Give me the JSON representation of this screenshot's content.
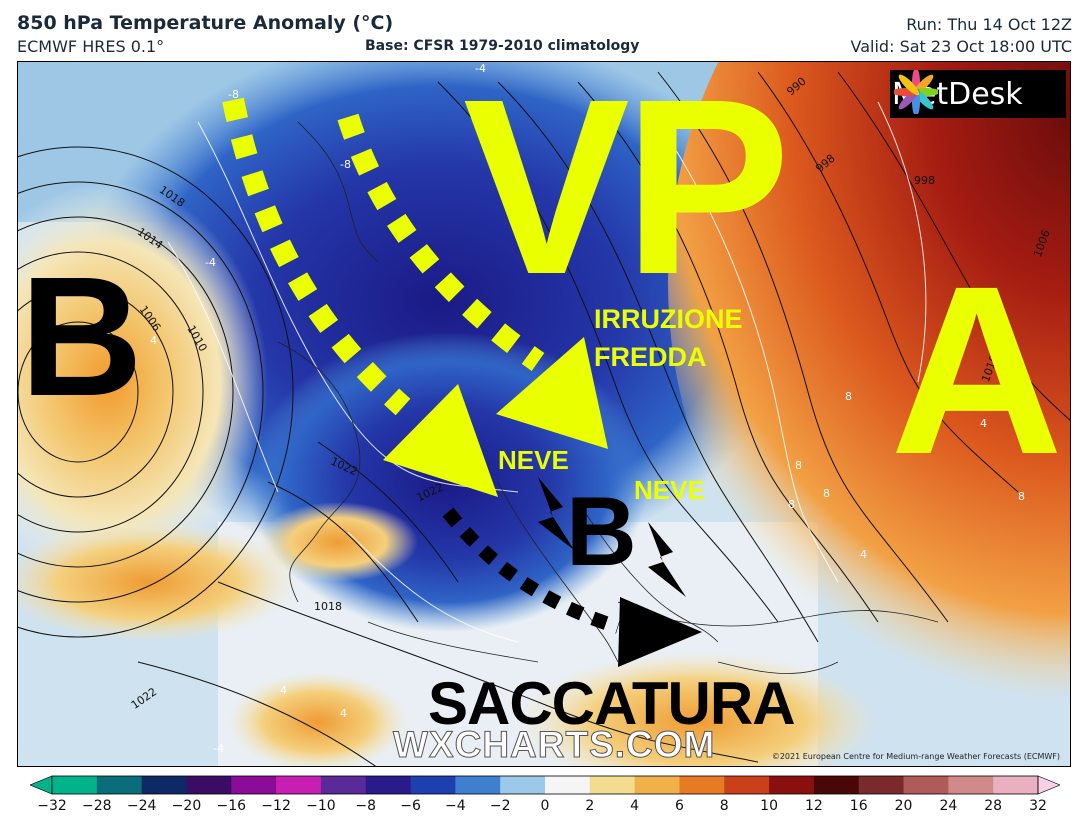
{
  "header": {
    "title": "850 hPa Temperature Anomaly (°C)",
    "model": "ECMWF HRES 0.1°",
    "base": "Base: CFSR 1979-2010 climatology",
    "run": "Run: Thu 14 Oct 12Z",
    "valid": "Valid: Sat 23 Oct 18:00 UTC"
  },
  "logo": {
    "text": "MetDesk",
    "icon": "metdesk-flower-icon"
  },
  "annotations": {
    "vp": "VP",
    "a": "A",
    "b_west": "B",
    "b_south": "B",
    "irruzione": "IRRUZIONE",
    "fredda": "FREDDA",
    "neve_1": "NEVE",
    "neve_2": "NEVE",
    "saccatura": "SACCATURA"
  },
  "watermark": "WXCHARTS.COM",
  "copyright": "©2021 European Centre for Medium-range Weather Forecasts (ECMWF)",
  "isobar_labels": [
    "1018",
    "1014",
    "1010",
    "1006",
    "1022",
    "1022",
    "1018",
    "1022",
    "990",
    "998",
    "998",
    "1006",
    "1010"
  ],
  "anomaly_labels": [
    "-8",
    "-8",
    "-4",
    "-4",
    "4",
    "8",
    "8",
    "8",
    "8",
    "4",
    "4",
    "8",
    "4",
    "4",
    "-4",
    "-4"
  ],
  "colorbar": {
    "ticks": [
      "-32",
      "-28",
      "-24",
      "-20",
      "-16",
      "-12",
      "-10",
      "-8",
      "-6",
      "-4",
      "-2",
      "0",
      "2",
      "4",
      "6",
      "8",
      "10",
      "12",
      "16",
      "20",
      "24",
      "28",
      "32"
    ],
    "colors": [
      "#00b38a",
      "#0a6e7a",
      "#0d2a66",
      "#3a0c66",
      "#8a0c99",
      "#c81fb3",
      "#5a2a9a",
      "#2a1a8a",
      "#1d3fb0",
      "#3f7fd0",
      "#9cc8ea",
      "#f5f5f5",
      "#f3dc8f",
      "#f0b04a",
      "#e77b25",
      "#c9401a",
      "#8a1010",
      "#4a0707",
      "#7a2a2a",
      "#b05a5a",
      "#d08a8a",
      "#e8b0c0",
      "#f8d0e8"
    ]
  }
}
